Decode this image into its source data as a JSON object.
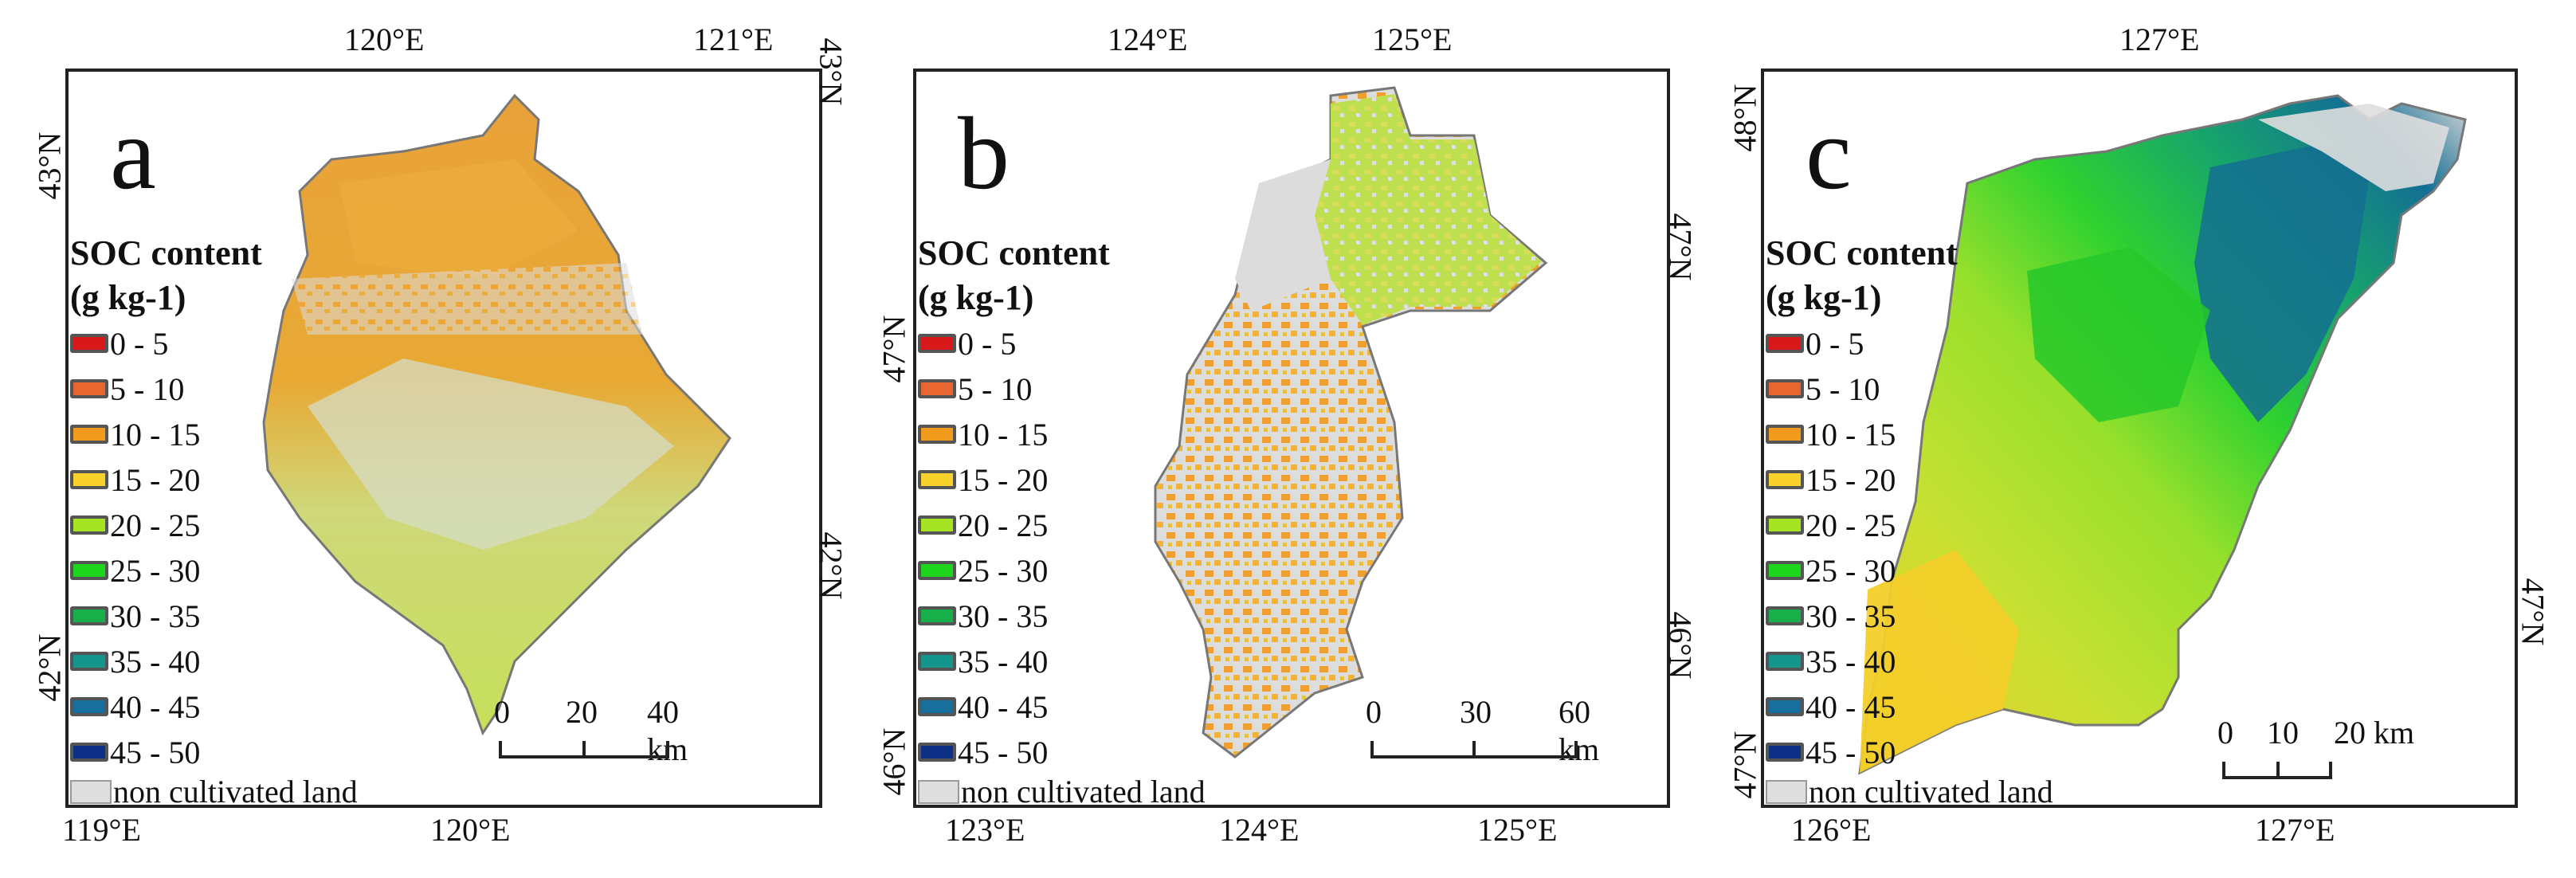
{
  "legend": {
    "title_line1": "SOC content",
    "title_line2": "(g kg-1)",
    "classes": [
      {
        "label": "0 - 5",
        "color": "#d7191c"
      },
      {
        "label": "5 - 10",
        "color": "#e8662f"
      },
      {
        "label": "10 - 15",
        "color": "#f29a1b"
      },
      {
        "label": "15 - 20",
        "color": "#f9d12b"
      },
      {
        "label": "20 - 25",
        "color": "#a6e324"
      },
      {
        "label": "25 - 30",
        "color": "#1fd61f"
      },
      {
        "label": "30 - 35",
        "color": "#17b04a"
      },
      {
        "label": "35 - 40",
        "color": "#15958c"
      },
      {
        "label": "40 - 45",
        "color": "#166f9c"
      },
      {
        "label": "45 - 50",
        "color": "#0d2f85"
      }
    ],
    "non_cultivated": {
      "label": "non cultivated land",
      "color": "#dedede"
    }
  },
  "panels": [
    {
      "letter": "a",
      "top_ticks": [
        "120°E",
        "121°E"
      ],
      "bottom_ticks": [
        "119°E",
        "120°E"
      ],
      "left_ticks": [
        "43°N",
        "42°N"
      ],
      "right_ticks": [
        "43°N",
        "42°N"
      ],
      "scale": {
        "labels": [
          "0",
          "20",
          "40 km"
        ]
      }
    },
    {
      "letter": "b",
      "top_ticks": [
        "124°E",
        "125°E"
      ],
      "bottom_ticks": [
        "123°E",
        "124°E",
        "125°E"
      ],
      "left_ticks": [
        "47°N",
        "46°N"
      ],
      "right_ticks": [
        "47°N",
        "46°N"
      ],
      "scale": {
        "labels": [
          "0",
          "30",
          "60 km"
        ]
      }
    },
    {
      "letter": "c",
      "top_ticks": [
        "127°E"
      ],
      "bottom_ticks": [
        "126°E",
        "127°E"
      ],
      "left_ticks": [
        "48°N",
        "47°N"
      ],
      "right_ticks": [
        "47°N"
      ],
      "scale": {
        "labels": [
          "0",
          "10",
          "20 km"
        ]
      }
    }
  ]
}
